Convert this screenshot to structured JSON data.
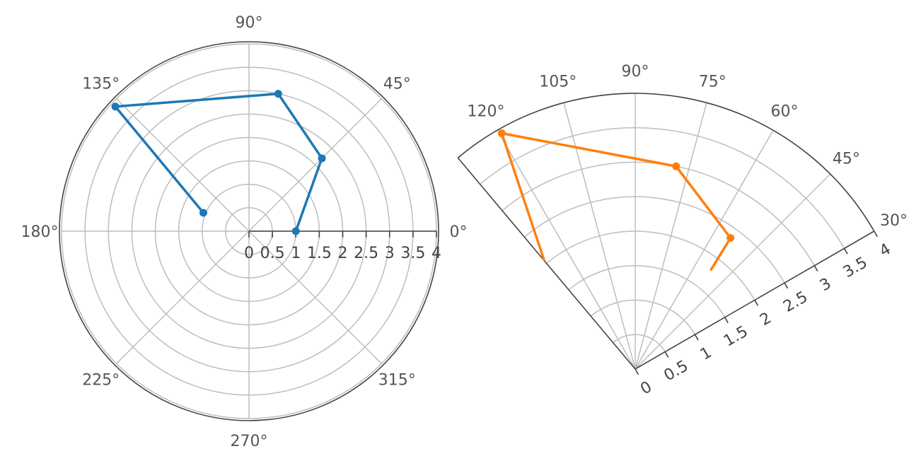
{
  "chart_data": [
    {
      "type": "line",
      "subtype": "polar",
      "color": "#1f77b4",
      "theta_range": [
        0,
        360
      ],
      "rlim": [
        0,
        4
      ],
      "r_ticks": [
        "0",
        "0.5",
        "1",
        "1.5",
        "2",
        "2.5",
        "3",
        "3.5",
        "4"
      ],
      "theta_tick_labels": [
        "0°",
        "45°",
        "90°",
        "135°",
        "180°",
        "225°",
        "270°",
        "315°"
      ],
      "series": [
        {
          "theta": [
            0,
            45,
            78,
            137,
            158
          ],
          "r": [
            1.0,
            2.2,
            3.0,
            3.9,
            1.05
          ]
        }
      ],
      "grid": true
    },
    {
      "type": "line",
      "subtype": "polar-sector",
      "color": "#ff7f0e",
      "theta_range": [
        30,
        130
      ],
      "rlim": [
        0,
        4
      ],
      "r_ticks": [
        "0",
        "0.5",
        "1",
        "1.5",
        "2",
        "2.5",
        "3",
        "3.5",
        "4"
      ],
      "theta_tick_labels": [
        "30°",
        "45°",
        "60°",
        "75°",
        "90°",
        "105°",
        "120°"
      ],
      "series": [
        {
          "theta": [
            52.6,
            54,
            78.6,
            119.5,
            130
          ],
          "r": [
            1.8,
            2.35,
            3.0,
            3.93,
            2.05
          ]
        }
      ],
      "grid": true
    }
  ]
}
